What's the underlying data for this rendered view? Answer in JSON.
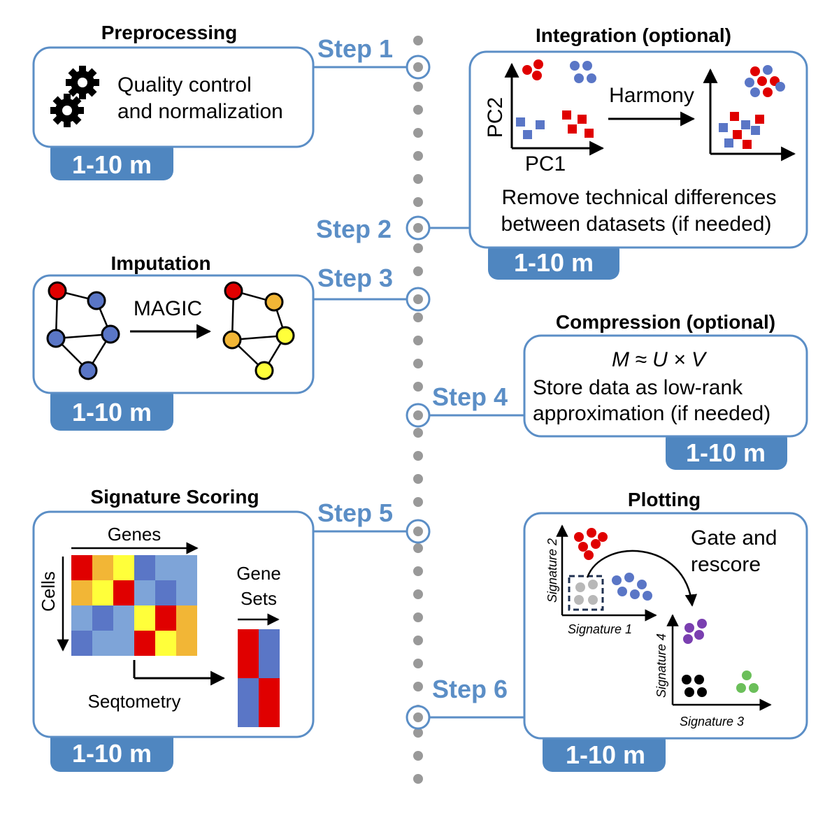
{
  "colors": {
    "accent": "#5b8ec6",
    "red": "#e00000",
    "blue": "#5a76c6",
    "orange": "#f2b636",
    "yellow": "#ffff3a",
    "purple": "#7a3fb0",
    "green": "#6bbf5a",
    "gray": "#b8b8b8"
  },
  "steps": {
    "s1": "Step 1",
    "s2": "Step 2",
    "s3": "Step 3",
    "s4": "Step 4",
    "s5": "Step 5",
    "s6": "Step 6"
  },
  "preprocessing": {
    "title": "Preprocessing",
    "line1": "Quality control",
    "line2": "and normalization",
    "time": "1-10 m",
    "icon": "gears-icon"
  },
  "integration": {
    "title": "Integration (optional)",
    "method": "Harmony",
    "xaxis": "PC1",
    "yaxis": "PC2",
    "line1": "Remove technical differences",
    "line2": "between datasets (if needed)",
    "time": "1-10 m"
  },
  "imputation": {
    "title": "Imputation",
    "method": "MAGIC",
    "time": "1-10 m"
  },
  "compression": {
    "title": "Compression (optional)",
    "formula": "M ≈ U × V",
    "line1": "Store data as low-rank",
    "line2": "approximation (if needed)",
    "time": "1-10 m"
  },
  "signature": {
    "title": "Signature Scoring",
    "genes": "Genes",
    "cells": "Cells",
    "gene_sets_1": "Gene",
    "gene_sets_2": "Sets",
    "method": "Seqtometry",
    "time": "1-10 m"
  },
  "plotting": {
    "title": "Plotting",
    "gate_1": "Gate and",
    "gate_2": "rescore",
    "sig1": "Signature 1",
    "sig2": "Signature 2",
    "sig3": "Signature 3",
    "sig4": "Signature 4",
    "time": "1-10 m"
  }
}
